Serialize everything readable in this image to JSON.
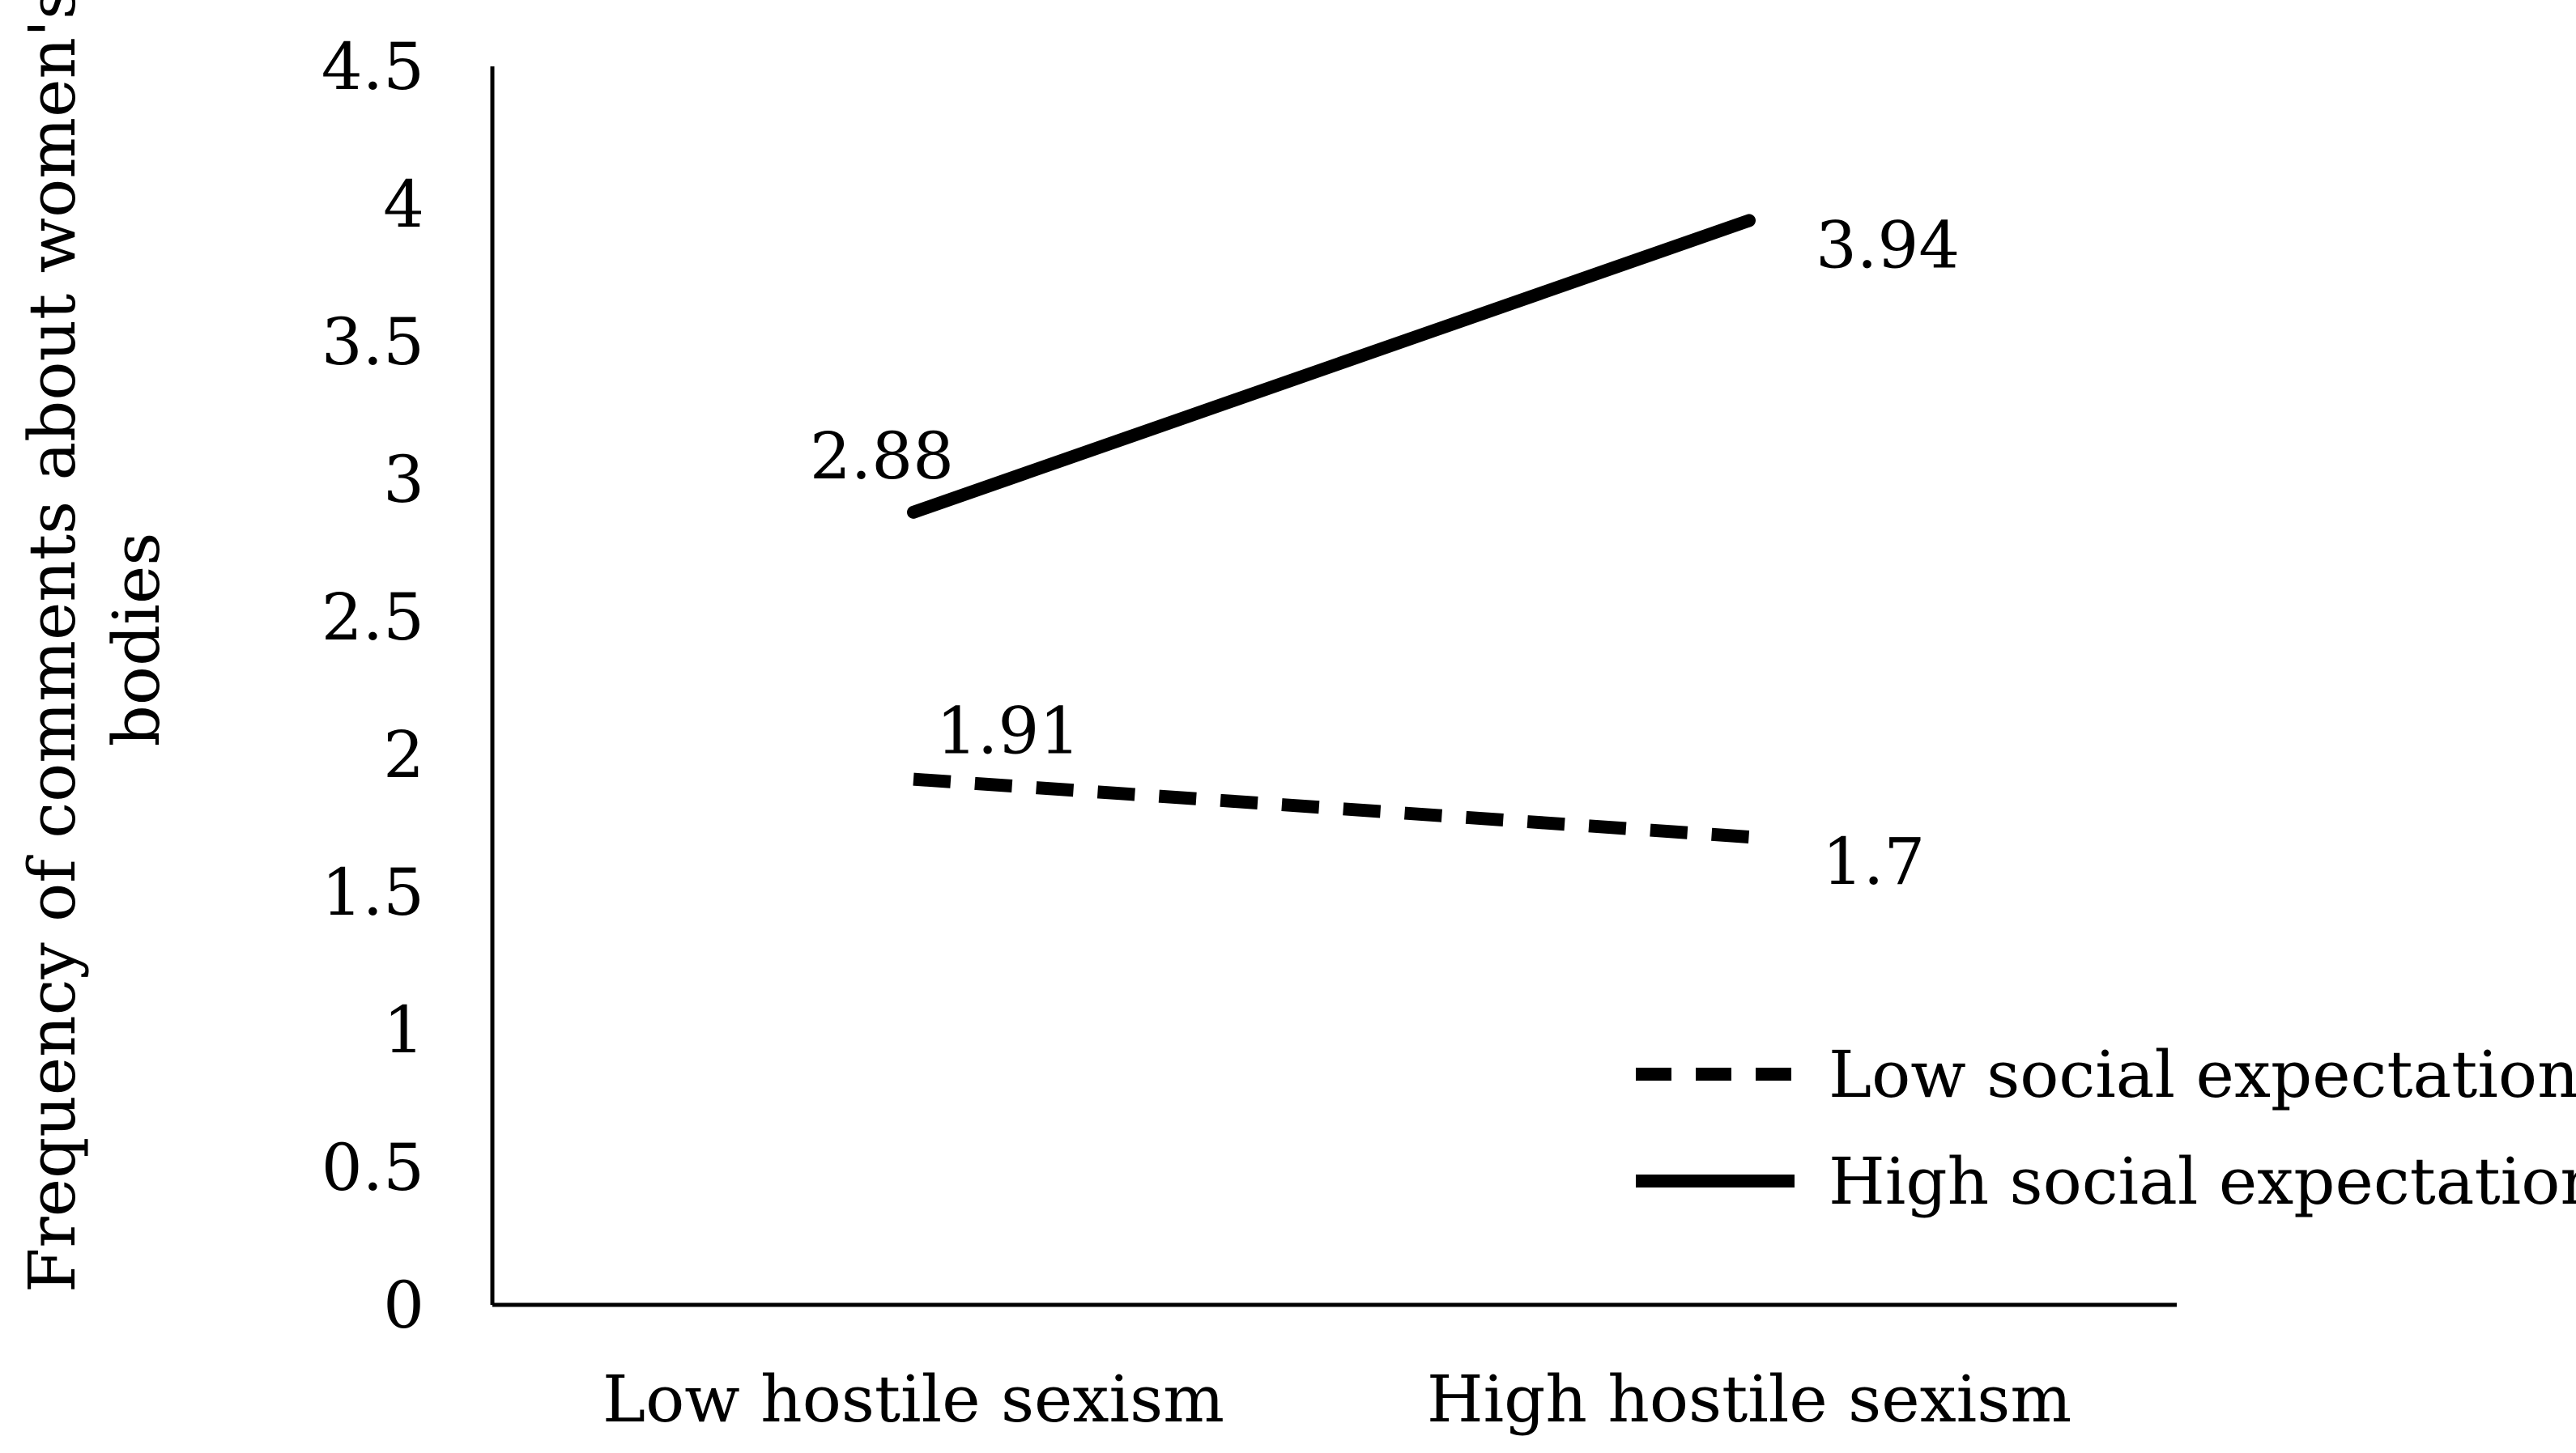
{
  "chart_data": {
    "type": "line",
    "title": "",
    "xlabel": "",
    "ylabel": "Frequency of comments about women's bodies",
    "ylabel_lines": [
      "Frequency of comments about women's",
      "bodies"
    ],
    "categories": [
      "Low hostile sexism",
      "High hostile sexism"
    ],
    "ylim": [
      0,
      4.5
    ],
    "yticks": [
      0,
      0.5,
      1,
      1.5,
      2,
      2.5,
      3,
      3.5,
      4,
      4.5
    ],
    "ytick_labels": [
      "0",
      "0.5",
      "1",
      "1.5",
      "2",
      "2.5",
      "3",
      "3.5",
      "4",
      "4.5"
    ],
    "grid": false,
    "legend_position": "bottom-right",
    "series": [
      {
        "name": "Low social expectations",
        "style": "dashed",
        "color": "#000000",
        "values": [
          1.91,
          1.7
        ],
        "value_labels": [
          "1.91",
          "1.7"
        ]
      },
      {
        "name": "High social expectations",
        "style": "solid",
        "color": "#000000",
        "values": [
          2.88,
          3.94
        ],
        "value_labels": [
          "2.88",
          "3.94"
        ]
      }
    ]
  }
}
